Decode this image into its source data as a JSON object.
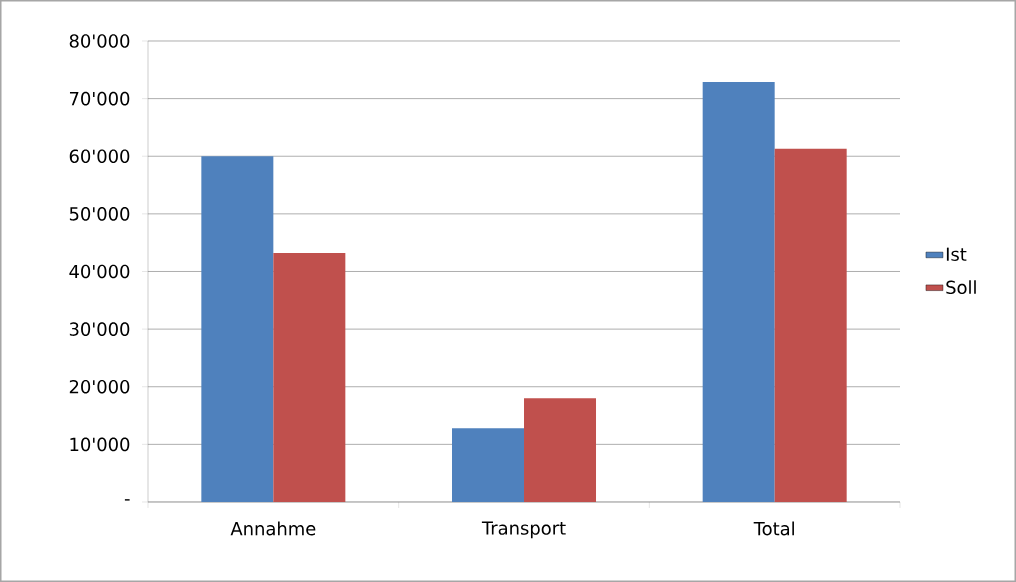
{
  "chart_data": {
    "type": "bar",
    "categories": [
      "Annahme",
      "Transport",
      "Total"
    ],
    "series": [
      {
        "name": "Ist",
        "color": "#4f81bd",
        "values": [
          60000,
          12800,
          72900
        ]
      },
      {
        "name": "Soll",
        "color": "#c0504d",
        "values": [
          43200,
          18000,
          61300
        ]
      }
    ],
    "ylim": [
      0,
      80000
    ],
    "yticks": [
      {
        "value": 0,
        "label": "-"
      },
      {
        "value": 10000,
        "label": "10'000"
      },
      {
        "value": 20000,
        "label": "20'000"
      },
      {
        "value": 30000,
        "label": "30'000"
      },
      {
        "value": 40000,
        "label": "40'000"
      },
      {
        "value": 50000,
        "label": "50'000"
      },
      {
        "value": 60000,
        "label": "60'000"
      },
      {
        "value": 70000,
        "label": "70'000"
      },
      {
        "value": 80000,
        "label": "80'000"
      }
    ],
    "grid": "y",
    "legend": "right"
  }
}
